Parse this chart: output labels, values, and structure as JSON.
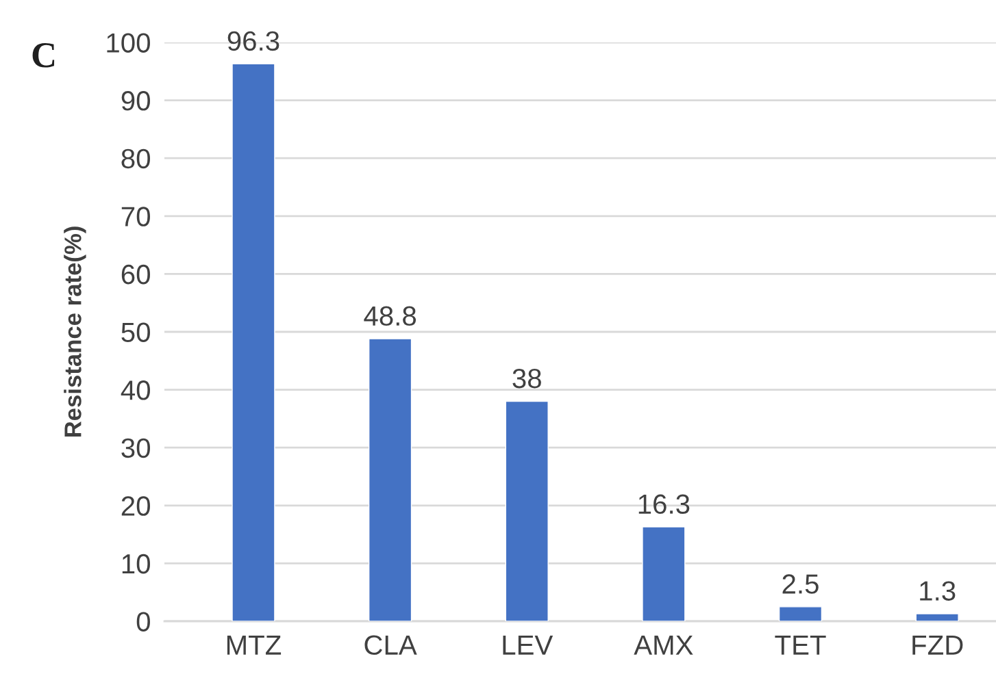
{
  "chart_data": {
    "type": "bar",
    "title": "C",
    "ylabel": "Resistance rate(%)",
    "categories": [
      "MTZ",
      "CLA",
      "LEV",
      "AMX",
      "TET",
      "FZD"
    ],
    "values": [
      96.3,
      48.8,
      38,
      16.3,
      2.5,
      1.3
    ],
    "color": "#4472c4",
    "ylim": [
      0,
      100
    ],
    "yticks": [
      0,
      10,
      20,
      30,
      40,
      50,
      60,
      70,
      80,
      90,
      100
    ],
    "grid": "y",
    "data_labels": true
  }
}
